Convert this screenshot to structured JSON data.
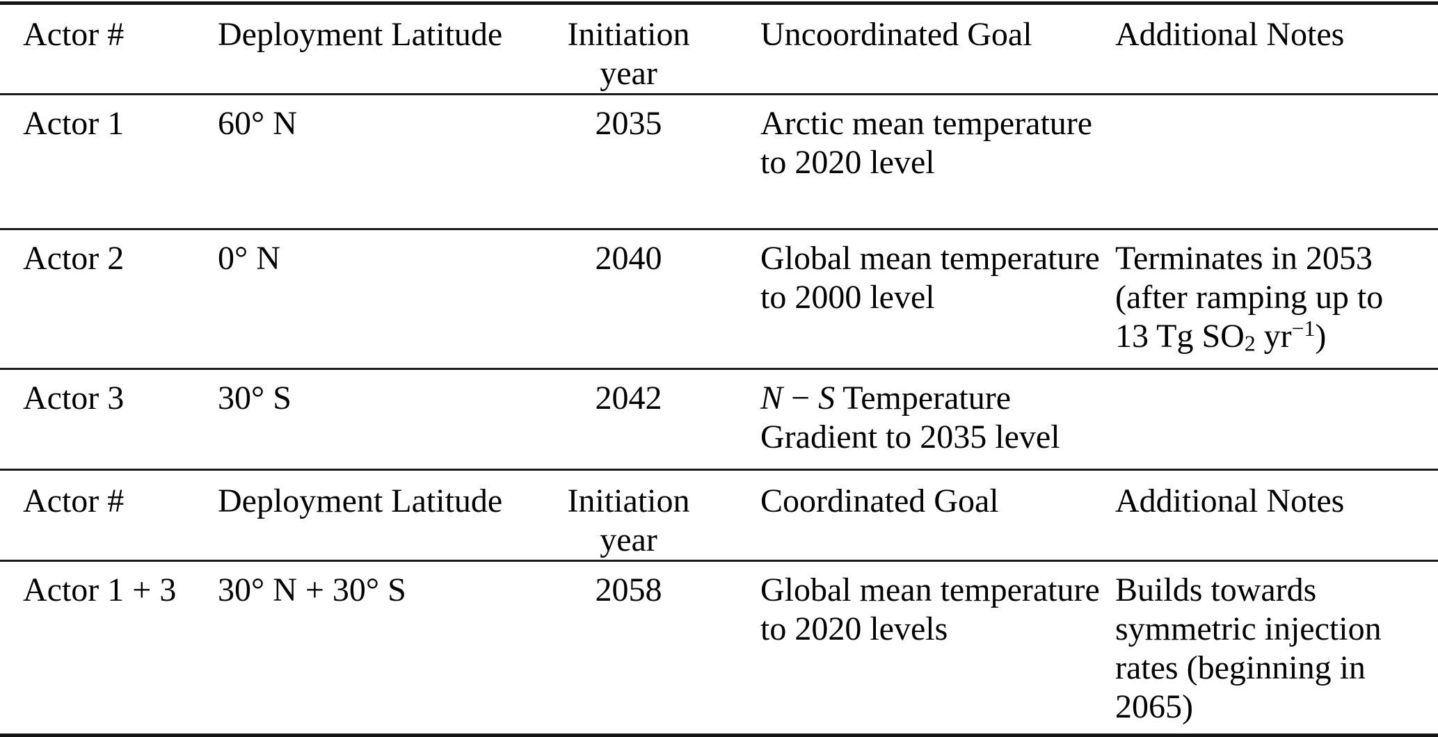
{
  "page": {
    "background": "#ffffff",
    "text_color": "#000000",
    "rule_color": "#1a1a1a"
  },
  "table": {
    "sections": [
      {
        "header": {
          "actor": "Actor #",
          "latitude": "Deployment Latitude",
          "year": "Initiation year",
          "goal": "Uncoordinated Goal",
          "notes": "Additional Notes"
        },
        "rows": [
          {
            "actor": "Actor 1",
            "latitude": "60° N",
            "year": "2035",
            "goal": [
              {
                "text": "Arctic mean temperature to 2020 level"
              }
            ],
            "notes": []
          },
          {
            "actor": "Actor 2",
            "latitude": "0° N",
            "year": "2040",
            "goal": [
              {
                "text": "Global mean temperature to 2000 level"
              }
            ],
            "notes": [
              {
                "text": "Terminates in 2053 (after ramping up to 13 Tg SO"
              },
              {
                "text": "2",
                "style": "sub"
              },
              {
                "text": " yr"
              },
              {
                "text": "−1",
                "style": "sup"
              },
              {
                "text": ")"
              }
            ]
          },
          {
            "actor": "Actor 3",
            "latitude": "30° S",
            "year": "2042",
            "goal": [
              {
                "text": "N",
                "style": "italic"
              },
              {
                "text": " − "
              },
              {
                "text": "S",
                "style": "italic"
              },
              {
                "text": " Temperature Gradient to 2035 level"
              }
            ],
            "notes": []
          }
        ]
      },
      {
        "header": {
          "actor": "Actor #",
          "latitude": "Deployment Latitude",
          "year": "Initiation year",
          "goal": "Coordinated Goal",
          "notes": "Additional Notes"
        },
        "rows": [
          {
            "actor": "Actor 1 + 3",
            "latitude": "30° N + 30° S",
            "year": "2058",
            "goal": [
              {
                "text": "Global mean temperature to 2020 levels"
              }
            ],
            "notes": [
              {
                "text": "Builds towards symmetric injection rates (beginning in 2065)"
              }
            ]
          }
        ]
      }
    ]
  }
}
